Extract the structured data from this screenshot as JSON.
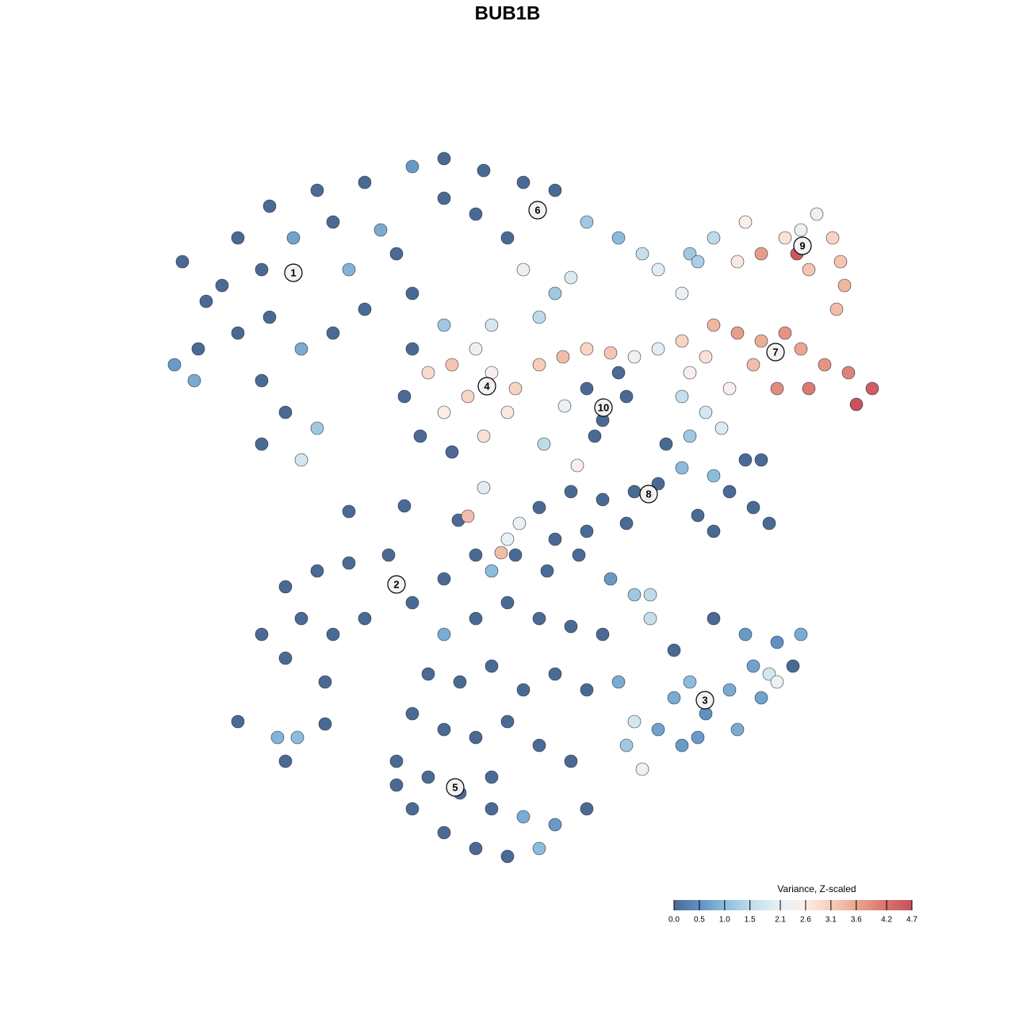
{
  "chart_data": {
    "type": "scatter",
    "title": "BUB1B",
    "xlim": [
      195,
      1135
    ],
    "ylim": [
      1095,
      175
    ],
    "x": [
      230,
      260,
      300,
      340,
      400,
      460,
      520,
      560,
      610,
      660,
      330,
      370,
      420,
      480,
      440,
      500,
      300,
      340,
      380,
      330,
      360,
      330,
      400,
      380,
      250,
      220,
      280,
      460,
      420,
      520,
      560,
      600,
      640,
      700,
      740,
      780,
      810,
      830,
      860,
      870,
      520,
      540,
      570,
      600,
      620,
      590,
      560,
      530,
      570,
      610,
      640,
      650,
      510,
      560,
      620,
      680,
      710,
      740,
      770,
      800,
      830,
      860,
      700,
      680,
      660,
      720,
      900,
      930,
      960,
      990,
      1010,
      1040,
      1070,
      1100,
      1080,
      950,
      980,
      1020,
      890,
      870,
      900,
      930,
      960,
      990,
      1010,
      1030,
      1050,
      1060,
      1065,
      1055,
      1020,
      1005,
      940,
      880,
      740,
      760,
      780,
      750,
      790,
      860,
      890,
      920,
      910,
      870,
      840,
      860,
      830,
      900,
      920,
      950,
      970,
      900,
      880,
      940,
      960,
      680,
      720,
      760,
      800,
      700,
      740,
      790,
      440,
      510,
      578,
      590,
      610,
      655,
      640,
      632,
      728,
      712,
      686,
      245,
      330,
      360,
      400,
      440,
      490,
      520,
      380,
      420,
      360,
      410,
      460,
      300,
      350,
      375,
      410,
      360,
      560,
      600,
      620,
      650,
      690,
      730,
      770,
      800,
      820,
      560,
      600,
      640,
      680,
      720,
      760,
      540,
      580,
      620,
      660,
      700,
      740,
      780,
      520,
      560,
      600,
      640,
      680,
      720,
      500,
      540,
      580,
      620,
      660,
      700,
      740,
      560,
      600,
      640,
      680,
      520,
      500,
      620,
      800,
      790,
      810,
      830,
      850,
      870,
      890,
      920,
      950,
      980,
      1010,
      1000,
      960,
      930,
      880,
      860,
      970,
      940,
      900,
      850,
      980,
      820
    ],
    "y": [
      330,
      380,
      300,
      260,
      240,
      230,
      210,
      200,
      215,
      230,
      340,
      300,
      280,
      290,
      340,
      320,
      420,
      400,
      440,
      480,
      520,
      560,
      540,
      580,
      440,
      460,
      360,
      390,
      420,
      370,
      250,
      270,
      300,
      240,
      280,
      300,
      320,
      340,
      370,
      320,
      440,
      470,
      460,
      440,
      470,
      500,
      520,
      550,
      570,
      550,
      520,
      490,
      500,
      410,
      410,
      460,
      450,
      440,
      445,
      450,
      440,
      430,
      370,
      400,
      340,
      350,
      410,
      420,
      430,
      420,
      440,
      460,
      470,
      490,
      510,
      460,
      490,
      490,
      450,
      470,
      300,
      330,
      320,
      300,
      290,
      270,
      300,
      330,
      360,
      390,
      340,
      320,
      280,
      330,
      490,
      530,
      470,
      550,
      500,
      500,
      520,
      490,
      540,
      550,
      560,
      590,
      610,
      600,
      620,
      640,
      660,
      670,
      650,
      580,
      580,
      640,
      620,
      630,
      620,
      680,
      670,
      660,
      645,
      638,
      656,
      651,
      615,
      660,
      680,
      697,
      587,
      512,
      560,
      480,
      800,
      740,
      720,
      710,
      700,
      760,
      780,
      800,
      830,
      860,
      780,
      910,
      930,
      930,
      913,
      960,
      730,
      700,
      720,
      700,
      720,
      700,
      730,
      750,
      750,
      800,
      780,
      760,
      780,
      790,
      800,
      850,
      860,
      840,
      870,
      850,
      870,
      860,
      900,
      920,
      930,
      910,
      940,
      960,
      960,
      980,
      1000,
      1020,
      1030,
      1040,
      1020,
      1050,
      1070,
      1080,
      1070,
      1020,
      990,
      980,
      910,
      940,
      970,
      920,
      880,
      860,
      900,
      870,
      840,
      810,
      800,
      840,
      880,
      920,
      930,
      940,
      850,
      800,
      780,
      820,
      860,
      780
    ],
    "values": [
      0,
      0,
      0,
      0,
      0,
      0,
      0.6,
      0,
      0,
      0,
      0,
      0.7,
      0,
      0.8,
      0.9,
      0,
      0,
      0,
      0.8,
      0,
      0,
      0,
      1.2,
      1.8,
      0,
      0.6,
      0,
      0,
      0,
      0,
      0,
      0,
      0,
      0,
      1.2,
      1.0,
      1.6,
      2.0,
      2.2,
      1.2,
      0,
      2.9,
      3.2,
      2.2,
      2.5,
      3.0,
      2.6,
      0,
      0,
      2.8,
      2.7,
      3.0,
      0,
      1.2,
      1.8,
      3.1,
      3.3,
      3.0,
      3.2,
      2.4,
      2.0,
      3.0,
      1.2,
      1.5,
      2.2,
      1.9,
      3.4,
      3.7,
      3.5,
      3.8,
      3.6,
      3.8,
      4.0,
      4.5,
      4.7,
      3.3,
      3.9,
      4.1,
      2.8,
      2.5,
      1.5,
      2.7,
      3.7,
      2.8,
      2.2,
      2.4,
      3.0,
      3.2,
      3.4,
      3.3,
      3.2,
      4.6,
      2.6,
      1.3,
      0,
      0,
      0,
      0,
      0,
      1.6,
      1.8,
      2.5,
      1.9,
      1.2,
      0,
      1.0,
      0,
      1.0,
      0,
      0,
      0,
      0,
      0,
      0,
      0,
      0,
      0,
      0,
      0,
      0,
      0,
      0,
      0,
      0,
      0,
      3.3,
      2.0,
      2.2,
      2.1,
      3.3,
      2.6,
      2.2,
      1.5,
      0.8,
      0,
      0,
      0,
      0,
      0,
      0,
      0,
      0,
      0,
      0,
      0,
      0,
      0.9,
      1.0,
      0,
      0,
      0,
      0,
      1.0,
      0,
      0,
      0,
      0.6,
      1.2,
      1.5,
      0.8,
      0,
      0,
      0,
      0,
      0,
      0,
      0,
      0,
      0,
      0,
      0,
      0.8,
      0,
      0,
      0,
      0,
      0,
      0,
      0,
      0,
      0,
      0,
      0.8,
      0.6,
      0,
      0,
      0,
      0,
      1.0,
      0,
      0,
      0,
      1.8,
      1.2,
      2.4,
      0.7,
      0.8,
      1.0,
      0.5,
      0.8,
      0.7,
      0.5,
      0.8,
      0,
      0.7,
      0.8,
      0.6,
      0.6,
      1.8,
      0.6,
      0,
      0,
      2.2,
      1.6
    ],
    "cluster_labels": [
      {
        "label": "1",
        "x": 370,
        "y": 344
      },
      {
        "label": "2",
        "x": 500,
        "y": 737
      },
      {
        "label": "3",
        "x": 889,
        "y": 883
      },
      {
        "label": "4",
        "x": 614,
        "y": 487
      },
      {
        "label": "5",
        "x": 574,
        "y": 993
      },
      {
        "label": "6",
        "x": 678,
        "y": 265
      },
      {
        "label": "7",
        "x": 978,
        "y": 444
      },
      {
        "label": "8",
        "x": 818,
        "y": 623
      },
      {
        "label": "9",
        "x": 1012,
        "y": 310
      },
      {
        "label": "10",
        "x": 761,
        "y": 514
      }
    ],
    "colorbar_title": "Variance, Z-scaled",
    "colorbar_ticks": [
      {
        "value": 0,
        "label": "0.0"
      },
      0.5,
      {
        "value": 1,
        "label": "1.0"
      },
      1.5,
      2.1,
      2.6,
      3.1,
      3.6,
      4.2,
      4.7
    ],
    "colorbar_colors": [
      "#4a6a94",
      "#5f91c3",
      "#8cbcdc",
      "#bfdbe9",
      "#e8f1f5",
      "#fbeee8",
      "#f7cdb9",
      "#eba68f",
      "#d8716c",
      "#c5525c"
    ]
  }
}
